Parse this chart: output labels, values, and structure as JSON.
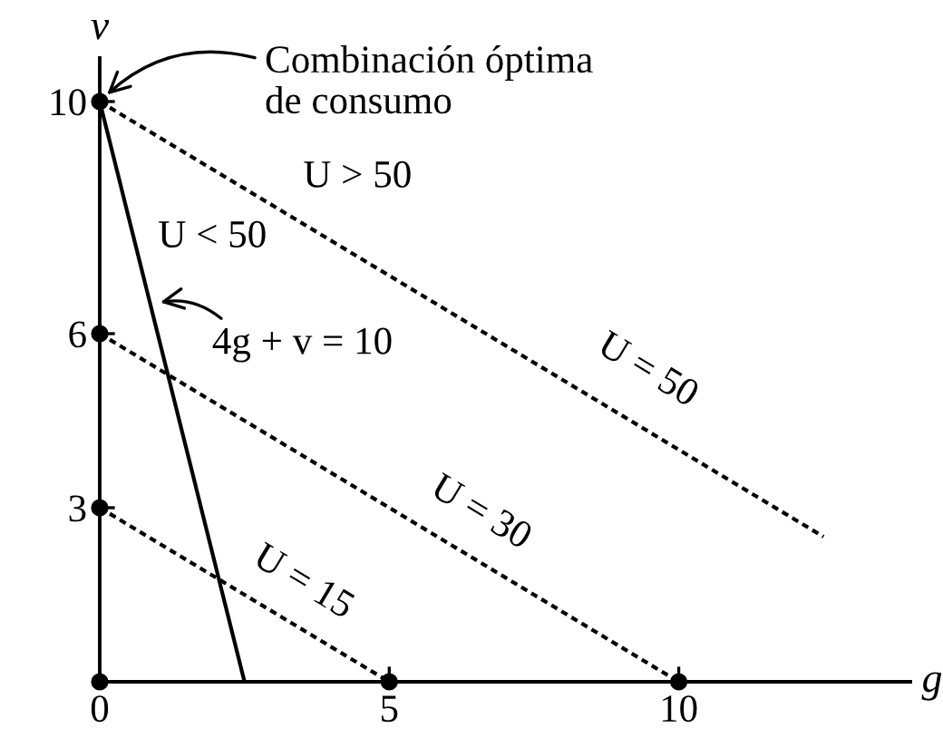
{
  "chart_data": {
    "type": "line",
    "xlabel": "g",
    "ylabel": "v",
    "xlim": [
      0,
      14
    ],
    "ylim": [
      0,
      10.75
    ],
    "xticks": [
      0,
      5,
      10
    ],
    "yticks": [
      3,
      6,
      10
    ],
    "series": [
      {
        "color": "#000000",
        "x": [
          0,
          2.5
        ],
        "values": [
          10,
          0
        ],
        "line_style": "solid",
        "marker": "none"
      },
      {
        "name": "U = 15",
        "color": "#000000",
        "x": [
          0,
          5
        ],
        "values": [
          3,
          0
        ],
        "line_style": "dashed",
        "marker": "none"
      },
      {
        "name": "U = 30",
        "color": "#000000",
        "x": [
          0,
          10
        ],
        "values": [
          6,
          0
        ],
        "line_style": "dashed",
        "marker": "none"
      },
      {
        "name": "U = 50",
        "color": "#000000",
        "x": [
          0,
          12.5
        ],
        "values": [
          10,
          2.5
        ],
        "line_style": "dashed",
        "marker": "none"
      },
      {
        "type": "scatter",
        "color": "#000000",
        "x": [
          0,
          0,
          0,
          0,
          5,
          10
        ],
        "values": [
          10,
          6,
          3,
          0,
          0,
          0
        ],
        "marker": "circle"
      }
    ],
    "annotations": [
      {
        "text": "Combinación óptima\nde consumo",
        "x": 0,
        "y": 10
      },
      {
        "text": "4g + v = 10",
        "x": 0.875,
        "y": 6.5
      },
      "U > 50",
      "U < 50"
    ]
  }
}
